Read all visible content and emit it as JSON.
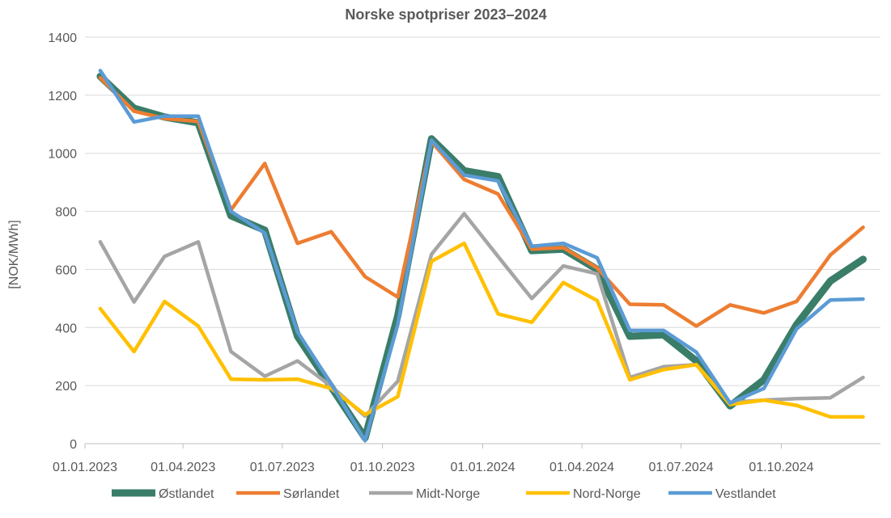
{
  "chart_data": {
    "type": "line",
    "title": "Norske spotpriser 2023–2024",
    "xlabel": "",
    "ylabel": "[NOK/MWh]",
    "ylim": [
      0,
      1400
    ],
    "yticks": [
      "0",
      "200",
      "400",
      "600",
      "800",
      "1000",
      "1200",
      "1400"
    ],
    "xlim": [
      "2023-01-01",
      "2024-12-31"
    ],
    "xticks": [
      {
        "date": "2023-01-01",
        "label": "01.01.2023"
      },
      {
        "date": "2023-04-01",
        "label": "01.04.2023"
      },
      {
        "date": "2023-07-01",
        "label": "01.07.2023"
      },
      {
        "date": "2023-10-01",
        "label": "01.10.2023"
      },
      {
        "date": "2024-01-01",
        "label": "01.01.2024"
      },
      {
        "date": "2024-04-01",
        "label": "01.04.2024"
      },
      {
        "date": "2024-07-01",
        "label": "01.07.2024"
      },
      {
        "date": "2024-10-01",
        "label": "01.10.2024"
      }
    ],
    "grid": true,
    "legend_position": "bottom",
    "x": [
      "2023-01-15",
      "2023-02-15",
      "2023-03-15",
      "2023-04-15",
      "2023-05-15",
      "2023-06-15",
      "2023-07-15",
      "2023-08-15",
      "2023-09-15",
      "2023-10-15",
      "2023-11-15",
      "2023-12-15",
      "2024-01-15",
      "2024-02-15",
      "2024-03-15",
      "2024-04-15",
      "2024-05-15",
      "2024-06-15",
      "2024-07-15",
      "2024-08-15",
      "2024-09-15",
      "2024-10-15",
      "2024-11-15",
      "2024-12-15"
    ],
    "series": [
      {
        "name": "Østlandet",
        "color": "#3A7D68",
        "values": [
          1265,
          1155,
          1125,
          1105,
          785,
          735,
          370,
          195,
          20,
          440,
          1050,
          940,
          920,
          665,
          670,
          600,
          370,
          375,
          285,
          130,
          220,
          410,
          560,
          635
        ]
      },
      {
        "name": "Sørlandet",
        "color": "#ED7D31",
        "values": [
          1260,
          1145,
          1120,
          1110,
          805,
          965,
          690,
          730,
          575,
          505,
          1040,
          910,
          860,
          670,
          675,
          605,
          480,
          478,
          405,
          478,
          450,
          490,
          650,
          745
        ]
      },
      {
        "name": "Midt-Norge",
        "color": "#A5A5A5",
        "values": [
          695,
          488,
          645,
          695,
          317,
          232,
          285,
          198,
          95,
          215,
          652,
          792,
          645,
          500,
          612,
          585,
          228,
          265,
          272,
          142,
          150,
          155,
          158,
          228
        ]
      },
      {
        "name": "Nord-Norge",
        "color": "#FFC000",
        "values": [
          465,
          317,
          490,
          405,
          222,
          220,
          222,
          190,
          100,
          162,
          628,
          690,
          447,
          418,
          555,
          493,
          220,
          255,
          272,
          135,
          150,
          132,
          92,
          92
        ]
      },
      {
        "name": "Vestlandet",
        "color": "#5B9BD5",
        "values": [
          1285,
          1108,
          1128,
          1128,
          800,
          725,
          385,
          205,
          10,
          410,
          1045,
          925,
          905,
          680,
          690,
          640,
          390,
          390,
          315,
          140,
          190,
          395,
          495,
          498
        ]
      }
    ]
  }
}
